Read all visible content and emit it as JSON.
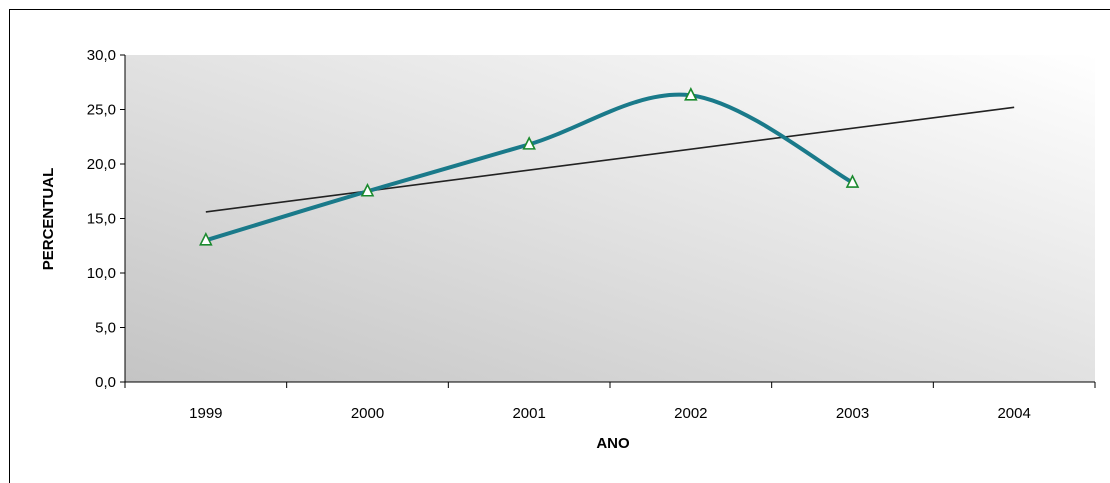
{
  "chart_data": {
    "type": "line",
    "xlabel": "ANO",
    "ylabel": "PERCENTUAL",
    "categories": [
      "1999",
      "2000",
      "2001",
      "2002",
      "2003",
      "2004"
    ],
    "ylim": [
      0,
      30
    ],
    "yticks": [
      "0,0",
      "5,0",
      "10,0",
      "15,0",
      "20,0",
      "25,0",
      "30,0"
    ],
    "series": [
      {
        "type": "smoothed-line",
        "marker": "triangle",
        "color": "#1a7a8a",
        "marker_color": "#1b8a2e",
        "values": [
          13.0,
          17.5,
          21.8,
          26.3,
          18.3,
          null
        ]
      },
      {
        "type": "linear-trendline",
        "color": "#222222",
        "values": [
          15.6,
          17.5,
          19.4,
          21.3,
          23.3,
          25.2
        ]
      }
    ],
    "background_gradient": [
      "#c4c4c4",
      "#ffffff"
    ],
    "grid": false,
    "legend": "none"
  }
}
